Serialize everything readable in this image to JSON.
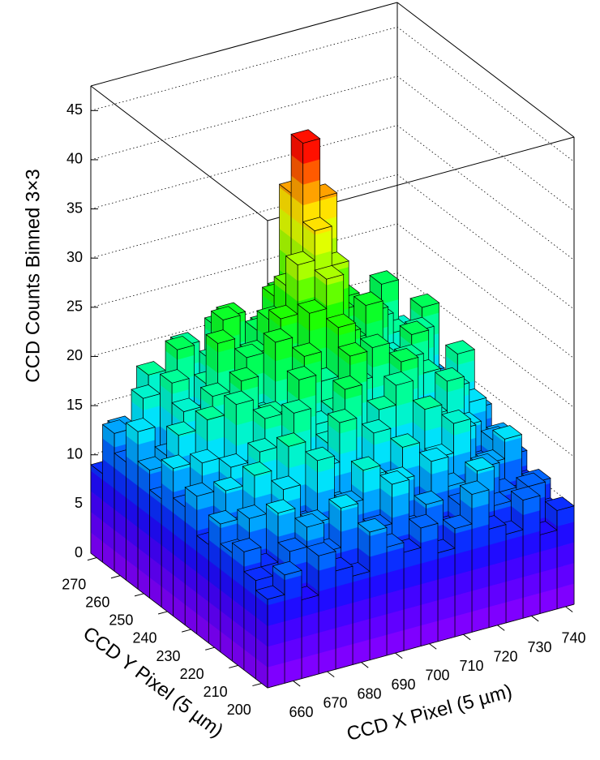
{
  "chart_data": {
    "type": "lego",
    "xlabel": "CCD X Pixel (5 µm)",
    "ylabel": "CCD Y Pixel (5 µm)",
    "zlabel": "CCD Counts Binned 3×3",
    "xbins": [
      652.5,
      657.5,
      662.5,
      667.5,
      672.5,
      677.5,
      682.5,
      687.5,
      692.5,
      697.5,
      702.5,
      707.5,
      712.5,
      717.5,
      722.5,
      727.5,
      732.5,
      737.5,
      742.5
    ],
    "ybins": [
      197.5,
      202.5,
      207.5,
      212.5,
      217.5,
      222.5,
      227.5,
      232.5,
      237.5,
      242.5,
      247.5,
      252.5,
      257.5,
      262.5,
      267.5,
      272.5
    ],
    "xlim": [
      652.5,
      742.5
    ],
    "ylim": [
      197.5,
      272.5
    ],
    "zlim": [
      0,
      47.5
    ],
    "xticks": [
      660,
      670,
      680,
      690,
      700,
      710,
      720,
      730,
      740
    ],
    "yticks": [
      200,
      210,
      220,
      230,
      240,
      250,
      260,
      270
    ],
    "zticks": [
      0,
      5,
      10,
      15,
      20,
      25,
      30,
      35,
      40,
      45
    ],
    "grid": true,
    "contours": 20,
    "palette": [
      "#7f00ff",
      "#4c00ff",
      "#1010ff",
      "#0070ff",
      "#00e0ff",
      "#00ffb0",
      "#00ff40",
      "#20ff00",
      "#a0ff00",
      "#ffff00",
      "#ff9000",
      "#ff1000"
    ],
    "values": [
      [
        9,
        11,
        8,
        12,
        10,
        9,
        13,
        11,
        10,
        12,
        9,
        11,
        14,
        10,
        9,
        12,
        8,
        10
      ],
      [
        10,
        8,
        12,
        14,
        11,
        15,
        10,
        12,
        16,
        11,
        13,
        10,
        12,
        15,
        11,
        9,
        12,
        9
      ],
      [
        12,
        10,
        15,
        11,
        13,
        10,
        14,
        17,
        12,
        15,
        11,
        16,
        13,
        10,
        14,
        11,
        10,
        11
      ],
      [
        11,
        14,
        10,
        16,
        12,
        18,
        13,
        11,
        15,
        13,
        17,
        12,
        15,
        18,
        12,
        13,
        15,
        10
      ],
      [
        13,
        12,
        17,
        13,
        19,
        14,
        16,
        20,
        14,
        18,
        15,
        14,
        19,
        13,
        16,
        12,
        14,
        12
      ],
      [
        10,
        15,
        13,
        18,
        14,
        21,
        15,
        17,
        22,
        16,
        19,
        21,
        14,
        17,
        20,
        15,
        12,
        13
      ],
      [
        14,
        11,
        16,
        15,
        20,
        16,
        23,
        18,
        19,
        24,
        17,
        15,
        22,
        16,
        14,
        18,
        16,
        11
      ],
      [
        12,
        16,
        14,
        21,
        17,
        19,
        17,
        24,
        21,
        26,
        20,
        23,
        17,
        21,
        19,
        13,
        20,
        14
      ],
      [
        15,
        13,
        19,
        16,
        22,
        18,
        25,
        19,
        27,
        30,
        24,
        18,
        20,
        16,
        22,
        17,
        15,
        12
      ],
      [
        11,
        17,
        15,
        20,
        16,
        23,
        19,
        26,
        31,
        34,
        30,
        22,
        25,
        19,
        17,
        21,
        13,
        15
      ],
      [
        13,
        14,
        18,
        17,
        24,
        20,
        22,
        25,
        28,
        42,
        36,
        24,
        19,
        23,
        18,
        14,
        22,
        12
      ],
      [
        16,
        12,
        20,
        15,
        19,
        25,
        18,
        23,
        26,
        36,
        27,
        20,
        24,
        17,
        21,
        19,
        16,
        14
      ],
      [
        12,
        18,
        14,
        22,
        17,
        20,
        24,
        19,
        22,
        25,
        21,
        25,
        18,
        22,
        16,
        23,
        18,
        11
      ],
      [
        14,
        11,
        19,
        16,
        21,
        15,
        22,
        17,
        20,
        18,
        23,
        16,
        21,
        15,
        19,
        14,
        17,
        13
      ],
      [
        9,
        13,
        10,
        15,
        12,
        16,
        13,
        14,
        12,
        15,
        11,
        14,
        13,
        16,
        12,
        13,
        10,
        9
      ]
    ]
  }
}
